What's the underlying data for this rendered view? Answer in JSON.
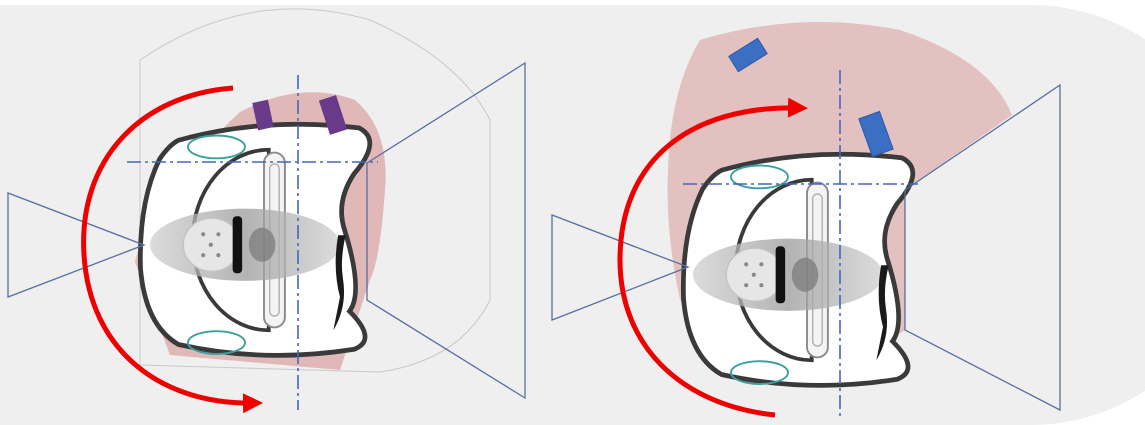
{
  "colors": {
    "background": "#ffffff",
    "panel_fill": "#efefef",
    "coverage_fill": "#d48a8a",
    "coverage_opacity_left": 0.55,
    "coverage_opacity_right": 0.45,
    "rotation_arrow": "#ee0000",
    "axis_line": "#4466bb",
    "camera_outline": "#5a6fa0",
    "robot_outline": "#3a3a3a",
    "marker_left": "#6a3a8a",
    "marker_right": "#3b6fc4",
    "wheel_outline": "#3aa0a0"
  },
  "panels": [
    {
      "name": "left-panel",
      "icons": [
        "robot-topview-icon",
        "camera-frustum-icon",
        "rotation-arrow-icon",
        "marker-icon"
      ],
      "marker_count": 2,
      "rotation_direction": "counterclockwise"
    },
    {
      "name": "right-panel",
      "icons": [
        "robot-topview-icon",
        "camera-frustum-icon",
        "rotation-arrow-icon",
        "marker-icon"
      ],
      "marker_count": 2,
      "rotation_direction": "clockwise"
    }
  ]
}
